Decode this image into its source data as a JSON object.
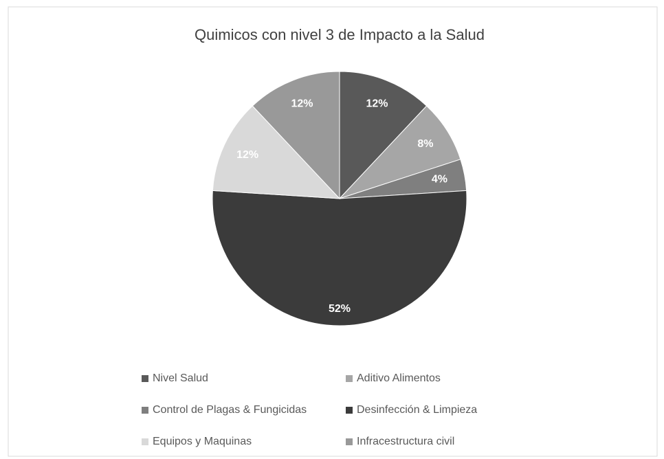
{
  "chart_data": {
    "type": "pie",
    "title": "Quimicos con nivel 3 de Impacto a la Salud",
    "categories": [
      "Nivel Salud",
      "Aditivo Alimentos",
      "Control de Plagas & Fungicidas",
      "Desinfección & Limpieza",
      "Equipos y Maquinas",
      "Infracestructura civil"
    ],
    "values": [
      12,
      8,
      4,
      52,
      12,
      12
    ],
    "value_labels": [
      "12%",
      "8%",
      "4%",
      "52%",
      "12%",
      "12%"
    ],
    "colors": [
      "#595959",
      "#a6a6a6",
      "#7f7f7f",
      "#3b3b3b",
      "#d9d9d9",
      "#999999"
    ],
    "legend": "bottom"
  }
}
